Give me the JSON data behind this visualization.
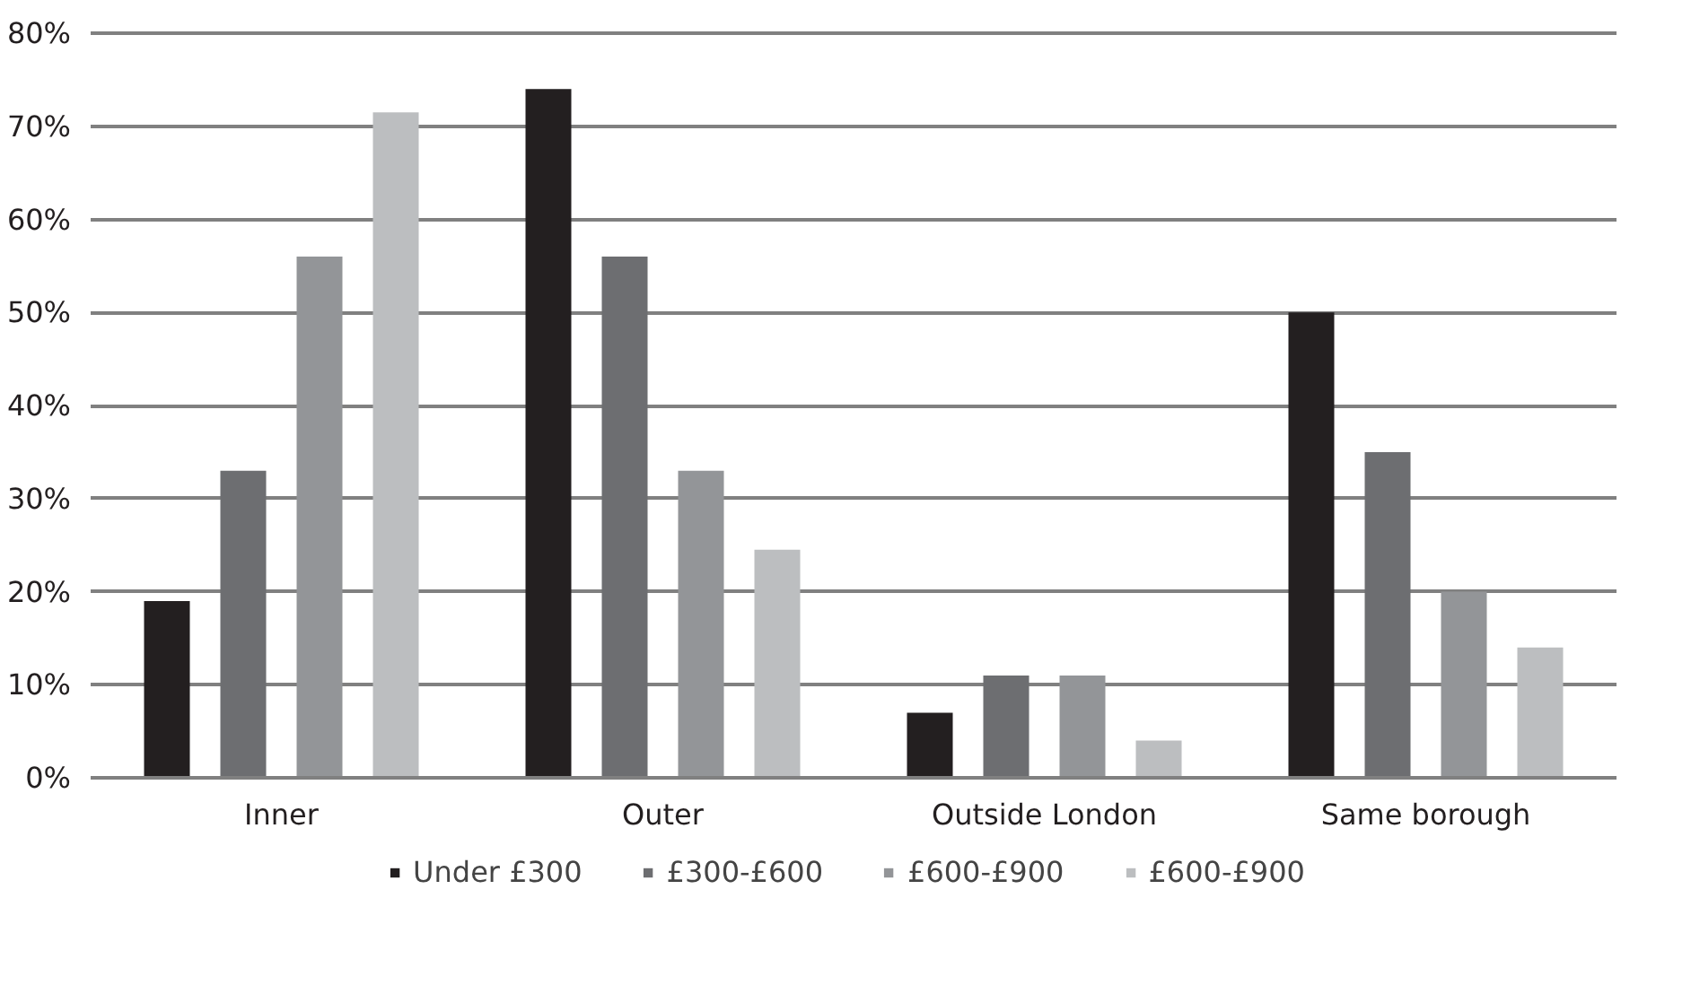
{
  "chart_data": {
    "type": "bar",
    "categories": [
      "Inner",
      "Outer",
      "Outside London",
      "Same borough"
    ],
    "series": [
      {
        "name": "Under £300",
        "color": "#231f20",
        "values": [
          19,
          74,
          7,
          50
        ]
      },
      {
        "name": "£300-£600",
        "color": "#6d6e71",
        "values": [
          33,
          56,
          11,
          35
        ]
      },
      {
        "name": "£600-£900",
        "color": "#939598",
        "values": [
          56,
          33,
          11,
          20
        ]
      },
      {
        "name": "£600-£900",
        "color": "#bcbec0",
        "values": [
          71.5,
          24.5,
          4,
          14
        ]
      }
    ],
    "ylim": [
      0,
      80
    ],
    "yticks": [
      {
        "value": 0,
        "label": "0%"
      },
      {
        "value": 10,
        "label": "10%"
      },
      {
        "value": 20,
        "label": "20%"
      },
      {
        "value": 30,
        "label": "30%"
      },
      {
        "value": 40,
        "label": "40%"
      },
      {
        "value": 50,
        "label": "50%"
      },
      {
        "value": 60,
        "label": "60%"
      },
      {
        "value": 70,
        "label": "70%"
      },
      {
        "value": 80,
        "label": "80%"
      }
    ],
    "grid": "y",
    "legend": "bottom"
  }
}
